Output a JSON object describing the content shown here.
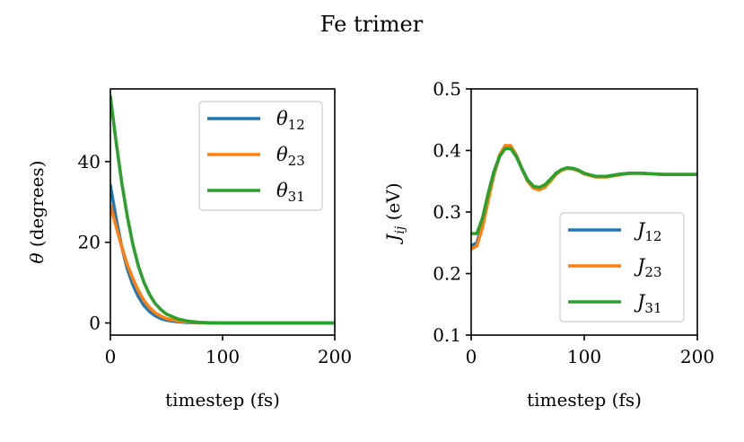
{
  "figure": {
    "title": "Fe trimer"
  },
  "colors": {
    "blue": "#1f77b4",
    "orange": "#ff7f0e",
    "green": "#2ca02c"
  },
  "chart_data": [
    {
      "type": "line",
      "xlabel": "timestep (fs)",
      "ylabel": "θ (degrees)",
      "xlim": [
        0,
        200
      ],
      "ylim": [
        -3,
        58
      ],
      "xticks": [
        0,
        100,
        200
      ],
      "yticks": [
        0,
        20,
        40
      ],
      "legend": "top-right",
      "grid": false,
      "series": [
        {
          "name": "θ12",
          "base": "θ",
          "sub": "12",
          "color": "#1f77b4",
          "x": [
            0,
            5,
            10,
            15,
            20,
            25,
            30,
            35,
            40,
            45,
            50,
            60,
            70,
            80,
            90,
            100,
            120,
            150,
            200
          ],
          "y": [
            34,
            26,
            19,
            13.5,
            9.5,
            6.5,
            4.3,
            2.8,
            1.8,
            1.1,
            0.7,
            0.3,
            0.1,
            0.05,
            0,
            0,
            0,
            0,
            0
          ]
        },
        {
          "name": "θ23",
          "base": "θ",
          "sub": "23",
          "color": "#ff7f0e",
          "x": [
            0,
            5,
            10,
            15,
            20,
            25,
            30,
            35,
            40,
            45,
            50,
            60,
            70,
            80,
            90,
            100,
            120,
            150,
            200
          ],
          "y": [
            29,
            24,
            19,
            14.5,
            11,
            8,
            5.5,
            3.8,
            2.5,
            1.7,
            1.1,
            0.5,
            0.2,
            0.1,
            0,
            0,
            0,
            0,
            0
          ]
        },
        {
          "name": "θ31",
          "base": "θ",
          "sub": "31",
          "color": "#2ca02c",
          "x": [
            0,
            5,
            10,
            15,
            20,
            25,
            30,
            35,
            40,
            45,
            50,
            60,
            70,
            80,
            90,
            100,
            120,
            150,
            200
          ],
          "y": [
            56,
            45,
            35,
            26.5,
            19.5,
            14,
            10,
            7,
            4.8,
            3.3,
            2.2,
            1,
            0.4,
            0.15,
            0.05,
            0,
            0,
            0,
            0
          ]
        }
      ]
    },
    {
      "type": "line",
      "xlabel": "timestep (fs)",
      "ylabel": "Jij (eV)",
      "xlim": [
        0,
        200
      ],
      "ylim": [
        0.1,
        0.5
      ],
      "xticks": [
        0,
        100,
        200
      ],
      "yticks": [
        0.1,
        0.2,
        0.3,
        0.4,
        0.5
      ],
      "legend": "lower-right",
      "grid": false,
      "series": [
        {
          "name": "J12",
          "base": "J",
          "sub": "12",
          "color": "#1f77b4",
          "x": [
            0,
            5,
            10,
            15,
            20,
            25,
            30,
            35,
            40,
            45,
            50,
            55,
            60,
            65,
            70,
            75,
            80,
            85,
            90,
            95,
            100,
            110,
            120,
            130,
            140,
            150,
            160,
            170,
            180,
            190,
            200
          ],
          "y": [
            0.245,
            0.25,
            0.28,
            0.32,
            0.36,
            0.39,
            0.405,
            0.405,
            0.39,
            0.37,
            0.35,
            0.34,
            0.338,
            0.342,
            0.352,
            0.362,
            0.368,
            0.371,
            0.37,
            0.367,
            0.362,
            0.358,
            0.358,
            0.361,
            0.363,
            0.363,
            0.362,
            0.361,
            0.361,
            0.361,
            0.361
          ]
        },
        {
          "name": "J23",
          "base": "J",
          "sub": "23",
          "color": "#ff7f0e",
          "x": [
            0,
            5,
            10,
            15,
            20,
            25,
            30,
            35,
            40,
            45,
            50,
            55,
            60,
            65,
            70,
            75,
            80,
            85,
            90,
            95,
            100,
            110,
            120,
            130,
            140,
            150,
            160,
            170,
            180,
            190,
            200
          ],
          "y": [
            0.24,
            0.245,
            0.275,
            0.318,
            0.36,
            0.392,
            0.408,
            0.408,
            0.392,
            0.37,
            0.35,
            0.339,
            0.336,
            0.34,
            0.35,
            0.361,
            0.368,
            0.371,
            0.37,
            0.367,
            0.362,
            0.357,
            0.357,
            0.36,
            0.363,
            0.363,
            0.362,
            0.361,
            0.361,
            0.361,
            0.361
          ]
        },
        {
          "name": "J31",
          "base": "J",
          "sub": "31",
          "color": "#2ca02c",
          "x": [
            0,
            5,
            10,
            15,
            20,
            25,
            30,
            35,
            40,
            45,
            50,
            55,
            60,
            65,
            70,
            75,
            80,
            85,
            90,
            95,
            100,
            110,
            120,
            130,
            140,
            150,
            160,
            170,
            180,
            190,
            200
          ],
          "y": [
            0.265,
            0.265,
            0.29,
            0.33,
            0.365,
            0.39,
            0.403,
            0.403,
            0.39,
            0.37,
            0.352,
            0.342,
            0.34,
            0.344,
            0.353,
            0.363,
            0.369,
            0.372,
            0.371,
            0.368,
            0.363,
            0.358,
            0.358,
            0.361,
            0.363,
            0.363,
            0.362,
            0.361,
            0.361,
            0.361,
            0.361
          ]
        }
      ]
    }
  ]
}
